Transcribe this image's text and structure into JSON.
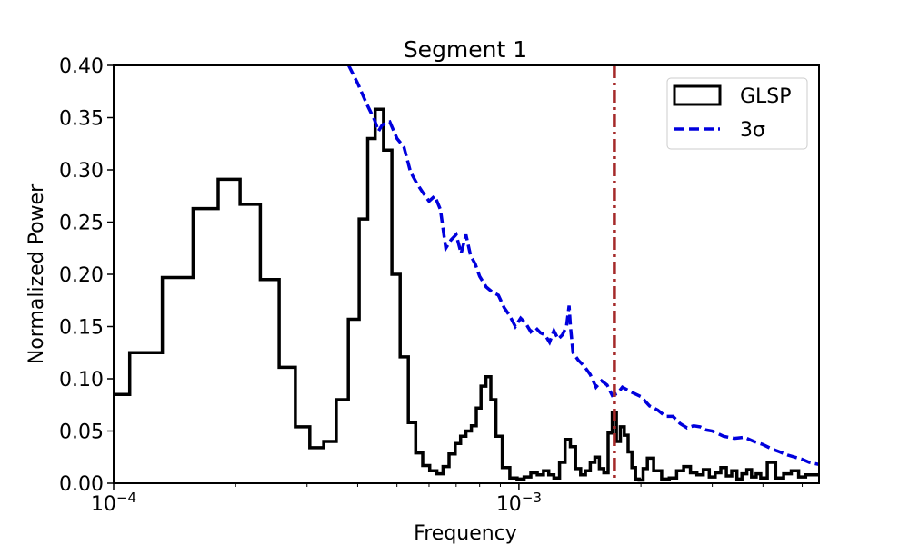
{
  "chart_data": {
    "type": "line",
    "title": "Segment 1",
    "xlabel": "Frequency",
    "ylabel": "Normalized Power",
    "xscale": "log",
    "xlim": [
      0.0001,
      0.0055
    ],
    "ylim": [
      0,
      0.4
    ],
    "grid": false,
    "legend_position": "top-right",
    "x_ticks": [
      {
        "value": 0.0001,
        "base": "10",
        "exp": "−4"
      },
      {
        "value": 0.001,
        "base": "10",
        "exp": "−3"
      }
    ],
    "y_ticks": [
      {
        "value": 0.0,
        "label": "0.00"
      },
      {
        "value": 0.05,
        "label": "0.05"
      },
      {
        "value": 0.1,
        "label": "0.10"
      },
      {
        "value": 0.15,
        "label": "0.15"
      },
      {
        "value": 0.2,
        "label": "0.20"
      },
      {
        "value": 0.25,
        "label": "0.25"
      },
      {
        "value": 0.3,
        "label": "0.30"
      },
      {
        "value": 0.35,
        "label": "0.35"
      },
      {
        "value": 0.4,
        "label": "0.40"
      }
    ],
    "series": [
      {
        "name": "GLSP",
        "style": "steps",
        "color": "#000000",
        "x": [
          0.0001,
          0.00012,
          0.000145,
          0.00017,
          0.000193,
          0.000218,
          0.000243,
          0.00027,
          0.000292,
          0.000318,
          0.000342,
          0.000367,
          0.000392,
          0.000415,
          0.000432,
          0.000452,
          0.000475,
          0.000497,
          0.000522,
          0.000545,
          0.000568,
          0.00059,
          0.000615,
          0.00064,
          0.00066,
          0.000685,
          0.000708,
          0.000728,
          0.000752,
          0.000775,
          0.000795,
          0.000818,
          0.00084,
          0.000865,
          0.00089,
          0.00093,
          0.00097,
          0.00101,
          0.00105,
          0.00109,
          0.00113,
          0.00117,
          0.0012,
          0.00124,
          0.00128,
          0.00132,
          0.00136,
          0.0014,
          0.00144,
          0.00148,
          0.00152,
          0.00156,
          0.0016,
          0.00164,
          0.00168,
          0.00172,
          0.00176,
          0.0018,
          0.00184,
          0.00188,
          0.00192,
          0.00196,
          0.002,
          0.00205,
          0.0021,
          0.0022,
          0.0023,
          0.0024,
          0.0025,
          0.0026,
          0.0027,
          0.0028,
          0.0029,
          0.003,
          0.0031,
          0.0032,
          0.0033,
          0.0034,
          0.0035,
          0.0036,
          0.0037,
          0.0038,
          0.0039,
          0.004,
          0.0042,
          0.0044,
          0.0046,
          0.0048,
          0.005,
          0.0052
        ],
        "values": [
          0.085,
          0.125,
          0.197,
          0.263,
          0.291,
          0.267,
          0.195,
          0.111,
          0.054,
          0.034,
          0.04,
          0.08,
          0.157,
          0.253,
          0.33,
          0.358,
          0.319,
          0.2,
          0.121,
          0.058,
          0.029,
          0.017,
          0.012,
          0.009,
          0.016,
          0.028,
          0.038,
          0.045,
          0.05,
          0.055,
          0.072,
          0.093,
          0.102,
          0.08,
          0.045,
          0.015,
          0.005,
          0.004,
          0.006,
          0.01,
          0.008,
          0.012,
          0.008,
          0.005,
          0.02,
          0.042,
          0.035,
          0.014,
          0.008,
          0.012,
          0.02,
          0.025,
          0.014,
          0.01,
          0.048,
          0.068,
          0.04,
          0.054,
          0.046,
          0.03,
          0.015,
          0.004,
          0.003,
          0.014,
          0.024,
          0.012,
          0.004,
          0.005,
          0.012,
          0.016,
          0.01,
          0.008,
          0.013,
          0.006,
          0.01,
          0.015,
          0.007,
          0.012,
          0.004,
          0.009,
          0.013,
          0.006,
          0.009,
          0.005,
          0.02,
          0.005,
          0.009,
          0.012,
          0.006,
          0.008
        ]
      },
      {
        "name": "3σ",
        "style": "dashed",
        "color": "#0000dd",
        "x": [
          0.00038,
          0.0004,
          0.00042,
          0.00044,
          0.00045,
          0.00046,
          0.00048,
          0.0005,
          0.00052,
          0.00054,
          0.00056,
          0.00058,
          0.0006,
          0.00062,
          0.00064,
          0.00066,
          0.00068,
          0.0007,
          0.00072,
          0.00074,
          0.00076,
          0.00078,
          0.0008,
          0.00083,
          0.00086,
          0.00089,
          0.00092,
          0.00095,
          0.00098,
          0.00101,
          0.00104,
          0.00107,
          0.0011,
          0.00113,
          0.00116,
          0.00119,
          0.00122,
          0.00125,
          0.00128,
          0.00131,
          0.00133,
          0.00134,
          0.00136,
          0.0014,
          0.00145,
          0.0015,
          0.00155,
          0.0016,
          0.00165,
          0.0017,
          0.00175,
          0.0018,
          0.0019,
          0.002,
          0.0021,
          0.0022,
          0.0023,
          0.0024,
          0.0025,
          0.0026,
          0.0027,
          0.0028,
          0.0029,
          0.003,
          0.0032,
          0.0034,
          0.0036,
          0.0038,
          0.004,
          0.0042,
          0.0044,
          0.0046,
          0.0048,
          0.005,
          0.0052,
          0.0055
        ],
        "values": [
          0.4,
          0.383,
          0.364,
          0.348,
          0.337,
          0.343,
          0.346,
          0.33,
          0.322,
          0.298,
          0.287,
          0.278,
          0.27,
          0.275,
          0.262,
          0.225,
          0.233,
          0.238,
          0.22,
          0.238,
          0.218,
          0.21,
          0.198,
          0.188,
          0.183,
          0.18,
          0.168,
          0.16,
          0.15,
          0.158,
          0.153,
          0.145,
          0.149,
          0.144,
          0.142,
          0.135,
          0.146,
          0.138,
          0.142,
          0.15,
          0.17,
          0.15,
          0.125,
          0.118,
          0.112,
          0.104,
          0.092,
          0.098,
          0.094,
          0.084,
          0.086,
          0.092,
          0.087,
          0.083,
          0.074,
          0.07,
          0.064,
          0.064,
          0.057,
          0.053,
          0.055,
          0.054,
          0.051,
          0.05,
          0.045,
          0.043,
          0.044,
          0.04,
          0.037,
          0.033,
          0.03,
          0.027,
          0.025,
          0.023,
          0.02,
          0.018
        ]
      }
    ],
    "vline": {
      "x": 0.00172,
      "color": "#a52a2a",
      "style": "dashdot"
    }
  }
}
